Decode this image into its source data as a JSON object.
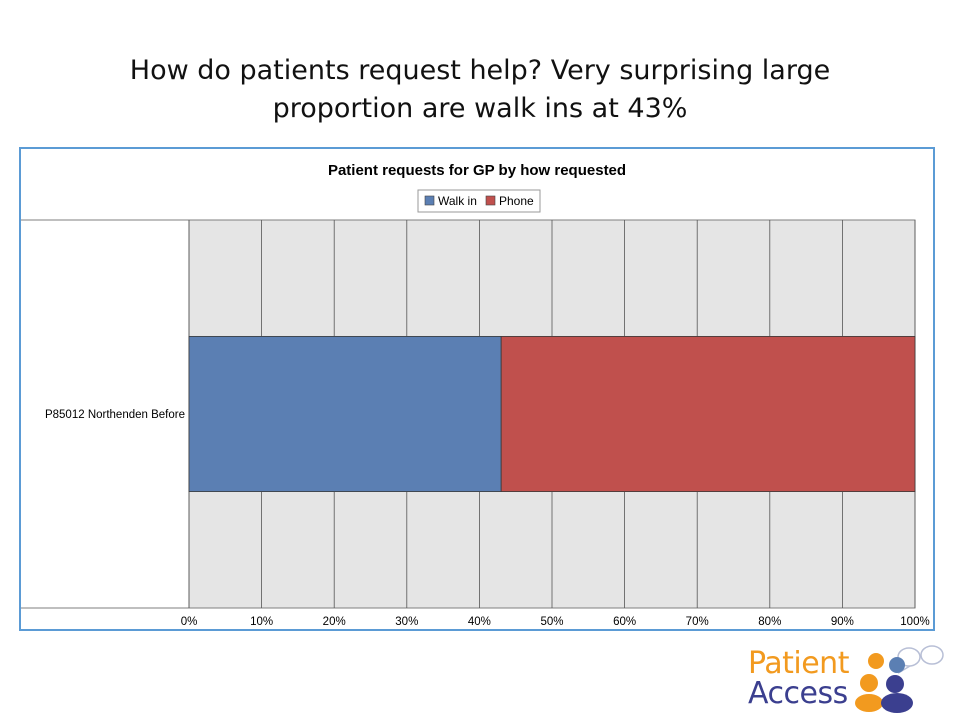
{
  "slide": {
    "title_line1": "How do patients request help?  Very surprising large",
    "title_line2": "proportion are walk ins at 43%"
  },
  "chart_data": {
    "type": "bar",
    "orientation": "horizontal",
    "stacked": "percent",
    "title": "Patient requests for GP by how requested",
    "categories": [
      "P85012 Northenden   Before"
    ],
    "series": [
      {
        "name": "Walk in",
        "values": [
          43
        ],
        "color": "#5B7FB3"
      },
      {
        "name": "Phone",
        "values": [
          57
        ],
        "color": "#C0504D"
      }
    ],
    "xlim": [
      0,
      100
    ],
    "x_ticks": [
      "0%",
      "10%",
      "20%",
      "30%",
      "40%",
      "50%",
      "60%",
      "70%",
      "80%",
      "90%",
      "100%"
    ],
    "grid": true,
    "legend_position": "top",
    "plot_background": "#E5E5E5",
    "frame_color": "#5B9BD5"
  },
  "logo": {
    "word1": "Patient",
    "word2": "Access",
    "colors": {
      "orange": "#F29A1F",
      "purple": "#3B3F8F",
      "blue": "#5B7FB3"
    }
  }
}
